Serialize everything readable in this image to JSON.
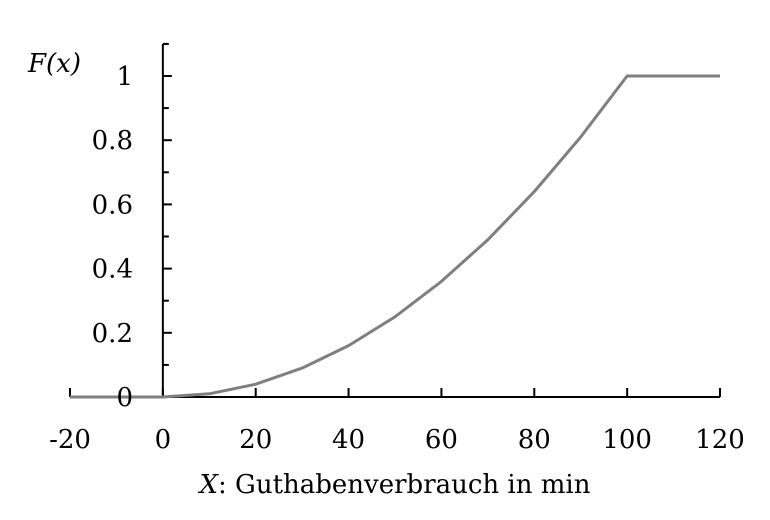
{
  "chart_data": {
    "type": "line",
    "title": "",
    "xlabel_var": "X",
    "xlabel_rest": ": Guthabenverbrauch in min",
    "ylabel": "F(x)",
    "xlim": [
      -20,
      120
    ],
    "ylim": [
      0,
      1.1
    ],
    "x_ticks": [
      -20,
      0,
      20,
      40,
      60,
      80,
      100,
      120
    ],
    "x_tick_labels": [
      "-20",
      "0",
      "20",
      "40",
      "60",
      "80",
      "100",
      "120"
    ],
    "y_ticks": [
      0,
      0.2,
      0.4,
      0.6,
      0.8,
      1
    ],
    "y_tick_labels": [
      "0",
      "0.2",
      "0.4",
      "0.6",
      "0.8",
      "1"
    ],
    "grid": false,
    "legend": "none",
    "series": [
      {
        "x": [
          -20,
          0,
          10,
          20,
          30,
          40,
          50,
          60,
          70,
          80,
          90,
          100,
          120
        ],
        "y": [
          0,
          0,
          0.01,
          0.04,
          0.09,
          0.16,
          0.25,
          0.36,
          0.49,
          0.64,
          0.81,
          1,
          1
        ],
        "color": "#7f7f7f"
      }
    ]
  }
}
